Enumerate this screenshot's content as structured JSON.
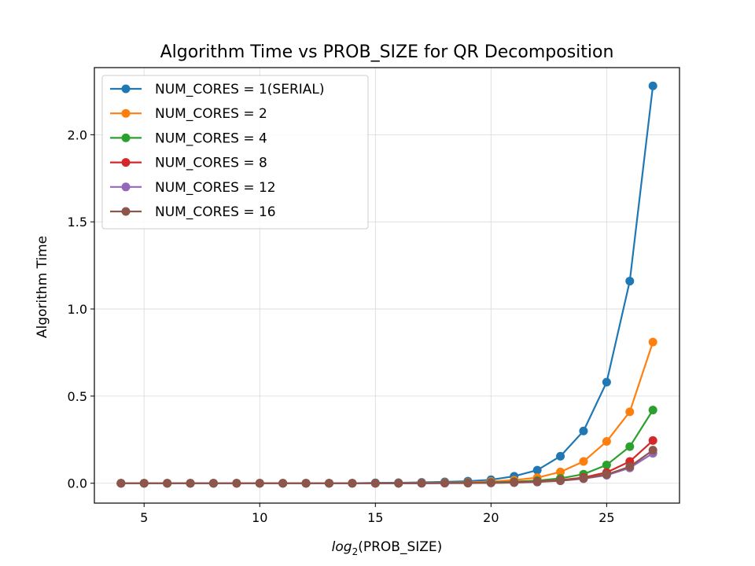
{
  "chart_data": {
    "type": "line",
    "title": "Algorithm Time vs PROB_SIZE for QR Decomposition",
    "xlabel_prefix": "log",
    "xlabel_sub": "2",
    "xlabel_suffix": "(PROB_SIZE)",
    "ylabel": "Algorithm Time",
    "xlim": [
      2.85,
      28.15
    ],
    "ylim": [
      -0.114,
      2.385
    ],
    "xticks": [
      5,
      10,
      15,
      20,
      25
    ],
    "yticks": [
      0.0,
      0.5,
      1.0,
      1.5,
      2.0
    ],
    "ytick_labels": [
      "0.0",
      "0.5",
      "1.0",
      "1.5",
      "2.0"
    ],
    "grid": true,
    "legend_position": "upper-left",
    "x": [
      4,
      5,
      6,
      7,
      8,
      9,
      10,
      11,
      12,
      13,
      14,
      15,
      16,
      17,
      18,
      19,
      20,
      21,
      22,
      23,
      24,
      25,
      26,
      27
    ],
    "series": [
      {
        "name": "NUM_CORES = 1(SERIAL)",
        "color": "#1f77b4",
        "values": [
          0,
          0,
          0,
          0,
          0,
          0,
          0,
          0,
          0,
          0,
          0,
          0.002,
          0.003,
          0.005,
          0.008,
          0.012,
          0.02,
          0.04,
          0.075,
          0.155,
          0.3,
          0.58,
          1.16,
          2.28
        ]
      },
      {
        "name": "NUM_CORES = 2",
        "color": "#ff7f0e",
        "values": [
          0,
          0,
          0,
          0,
          0,
          0,
          0,
          0,
          0,
          0,
          0,
          0,
          0.001,
          0.002,
          0.003,
          0.005,
          0.01,
          0.018,
          0.032,
          0.065,
          0.125,
          0.24,
          0.41,
          0.81
        ]
      },
      {
        "name": "NUM_CORES = 4",
        "color": "#2ca02c",
        "values": [
          0,
          0,
          0,
          0,
          0,
          0,
          0,
          0,
          0,
          0,
          0,
          0,
          0,
          0.001,
          0.002,
          0.003,
          0.005,
          0.009,
          0.015,
          0.028,
          0.052,
          0.105,
          0.21,
          0.42
        ]
      },
      {
        "name": "NUM_CORES = 8",
        "color": "#d62728",
        "values": [
          0,
          0,
          0,
          0,
          0,
          0,
          0,
          0,
          0,
          0,
          0,
          0,
          0,
          0.001,
          0.001,
          0.002,
          0.003,
          0.006,
          0.01,
          0.018,
          0.033,
          0.062,
          0.125,
          0.245
        ]
      },
      {
        "name": "NUM_CORES = 12",
        "color": "#9467bd",
        "values": [
          0,
          0,
          0,
          0,
          0,
          0,
          0,
          0,
          0,
          0,
          0,
          0,
          0,
          0,
          0.001,
          0.001,
          0.002,
          0.004,
          0.007,
          0.014,
          0.026,
          0.046,
          0.088,
          0.172
        ]
      },
      {
        "name": "NUM_CORES = 16",
        "color": "#8c564b",
        "values": [
          0,
          0,
          0,
          0,
          0,
          0,
          0,
          0,
          0,
          0,
          0,
          0,
          0,
          0,
          0.001,
          0.001,
          0.002,
          0.004,
          0.008,
          0.015,
          0.028,
          0.05,
          0.095,
          0.19
        ]
      }
    ]
  }
}
